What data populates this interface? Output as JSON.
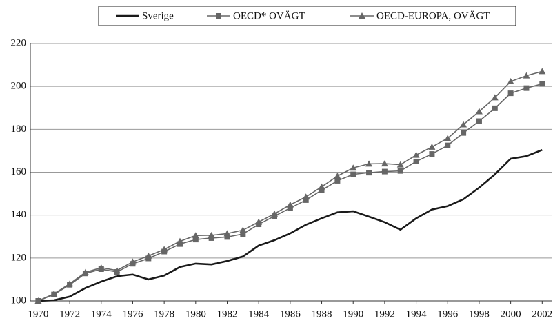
{
  "chart_data": {
    "type": "line",
    "x": [
      1970,
      1971,
      1972,
      1973,
      1974,
      1975,
      1976,
      1977,
      1978,
      1979,
      1980,
      1981,
      1982,
      1983,
      1984,
      1985,
      1986,
      1987,
      1988,
      1989,
      1990,
      1991,
      1992,
      1993,
      1994,
      1995,
      1996,
      1997,
      1998,
      1999,
      2000,
      2001,
      2002
    ],
    "series": [
      {
        "name": "Sverige",
        "color": "#1a1a1a",
        "marker": "none",
        "values": [
          100,
          100.3,
          102,
          106,
          109,
          111.5,
          112.3,
          110,
          111.8,
          115.8,
          117.4,
          117,
          118.6,
          120.7,
          125.8,
          128.3,
          131.5,
          135.5,
          138.5,
          141.3,
          141.8,
          139.3,
          136.7,
          133.2,
          138.5,
          142.6,
          144.2,
          147.4,
          152.8,
          159,
          166.3,
          167.5,
          170.4
        ]
      },
      {
        "name": "OECD* OVÄGT",
        "color": "#666666",
        "marker": "square",
        "values": [
          100,
          103,
          107.5,
          112.8,
          114.8,
          113.5,
          117.3,
          119.8,
          123,
          126.5,
          128.6,
          129.3,
          129.8,
          131.2,
          135.7,
          139.5,
          143.3,
          147,
          151.6,
          156,
          159,
          159.8,
          160.3,
          160.6,
          165,
          168.5,
          172.5,
          178.3,
          183.8,
          189.8,
          196.8,
          199.2,
          201.2
        ]
      },
      {
        "name": "OECD-EUROPA, OVÄGT",
        "color": "#666666",
        "marker": "triangle",
        "values": [
          100,
          103.3,
          108,
          113.3,
          115.5,
          114.2,
          118.2,
          121,
          124,
          127.8,
          130.5,
          130.6,
          131.4,
          133,
          136.8,
          140.6,
          144.8,
          148.5,
          153.2,
          158.2,
          162,
          163.9,
          164,
          163.5,
          168,
          171.8,
          175.8,
          182.2,
          188.3,
          194.8,
          202.3,
          205,
          207
        ]
      }
    ],
    "xlim": [
      1969.5,
      2002.6
    ],
    "xticks": [
      1970,
      1972,
      1974,
      1976,
      1978,
      1980,
      1982,
      1984,
      1986,
      1988,
      1990,
      1992,
      1994,
      1996,
      1998,
      2000,
      2002
    ],
    "ylim": [
      100,
      220
    ],
    "yticks": [
      100,
      120,
      140,
      160,
      180,
      200,
      220
    ],
    "grid": true,
    "legend": "top"
  }
}
